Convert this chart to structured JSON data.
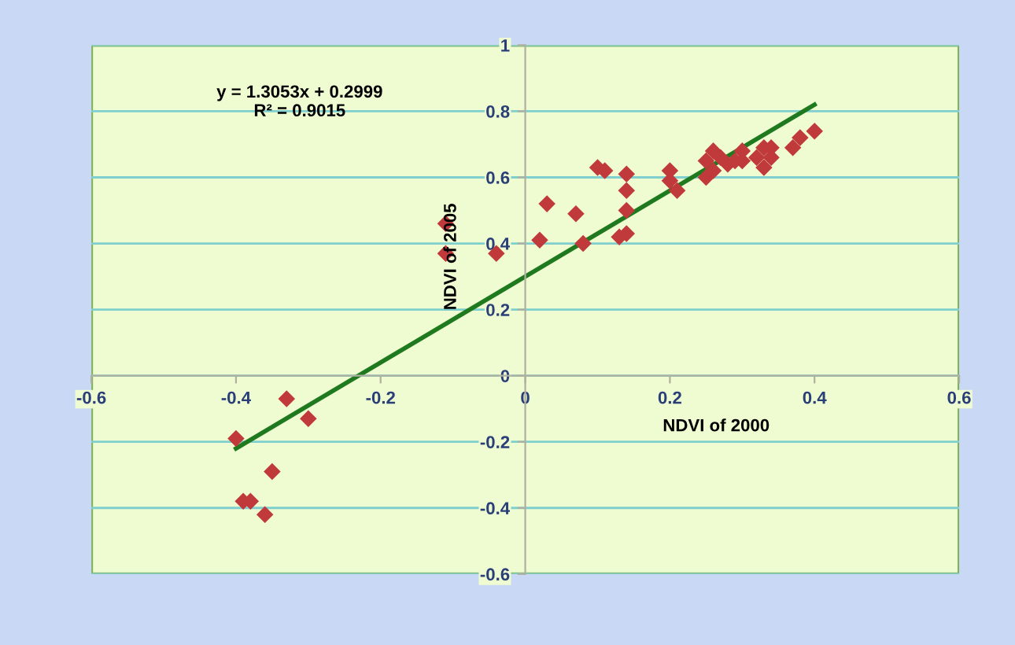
{
  "chart_data": {
    "type": "scatter",
    "xlabel": "NDVI of 2000",
    "ylabel": "NDVI of 2005",
    "annotations": [
      "y = 1.3053x + 0.2999",
      "R² = 0.9015"
    ],
    "series": [
      {
        "color": "#c0393b",
        "marker": "diamond",
        "x": [
          -0.4,
          -0.39,
          -0.38,
          -0.36,
          -0.35,
          -0.33,
          -0.3,
          -0.11,
          -0.11,
          -0.04,
          0.02,
          0.03,
          0.07,
          0.08,
          0.1,
          0.11,
          0.13,
          0.14,
          0.14,
          0.14,
          0.14,
          0.2,
          0.2,
          0.21,
          0.25,
          0.25,
          0.26,
          0.26,
          0.27,
          0.28,
          0.29,
          0.3,
          0.3,
          0.32,
          0.33,
          0.33,
          0.34,
          0.34,
          0.37,
          0.38,
          0.4
        ],
        "values": [
          -0.19,
          -0.38,
          -0.38,
          -0.42,
          -0.29,
          -0.07,
          -0.13,
          0.46,
          0.37,
          0.37,
          0.41,
          0.52,
          0.49,
          0.4,
          0.63,
          0.62,
          0.42,
          0.43,
          0.61,
          0.56,
          0.5,
          0.62,
          0.59,
          0.56,
          0.6,
          0.65,
          0.68,
          0.62,
          0.66,
          0.64,
          0.65,
          0.68,
          0.65,
          0.66,
          0.69,
          0.63,
          0.69,
          0.66,
          0.69,
          0.72,
          0.74
        ]
      },
      {
        "type": "line",
        "color": "#1f7a1f",
        "line_style": "solid",
        "x": [
          -0.4,
          0.4
        ],
        "values": [
          -0.22,
          0.82
        ]
      }
    ],
    "xlim": [
      -0.6,
      0.6
    ],
    "xticks": [
      -0.6,
      -0.4,
      -0.2,
      0,
      0.2,
      0.4,
      0.6
    ],
    "ylim": [
      -0.6,
      1
    ],
    "yticks": [
      -0.6,
      -0.4,
      -0.2,
      0,
      0.2,
      0.4,
      0.6,
      0.8,
      1
    ],
    "grid": "y",
    "legend": false
  }
}
